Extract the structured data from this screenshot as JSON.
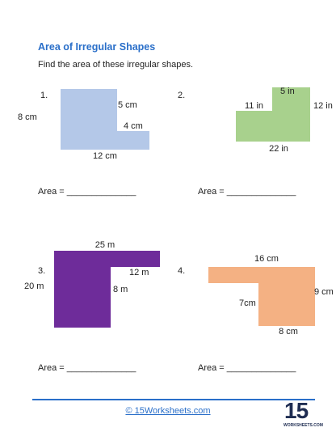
{
  "title": "Area of Irregular Shapes",
  "instruction": "Find the area of these irregular shapes.",
  "problems": [
    {
      "number": "1.",
      "labels": [
        "5 cm",
        "8 cm",
        "4 cm",
        "12 cm"
      ],
      "answer": "Area = ______________"
    },
    {
      "number": "2.",
      "labels": [
        "5 in",
        "11 in",
        "12 in",
        "22 in"
      ],
      "answer": "Area = ______________"
    },
    {
      "number": "3.",
      "labels": [
        "25 m",
        "12 m",
        "20 m",
        "8 m"
      ],
      "answer": "Area = ______________"
    },
    {
      "number": "4.",
      "labels": [
        "16 cm",
        "9 cm",
        "7cm",
        "8 cm"
      ],
      "answer": "Area = ______________"
    }
  ],
  "footer": {
    "copyright": "© 15Worksheets.com",
    "logo_number": "15",
    "logo_text": "WORKSHEETS.COM"
  }
}
